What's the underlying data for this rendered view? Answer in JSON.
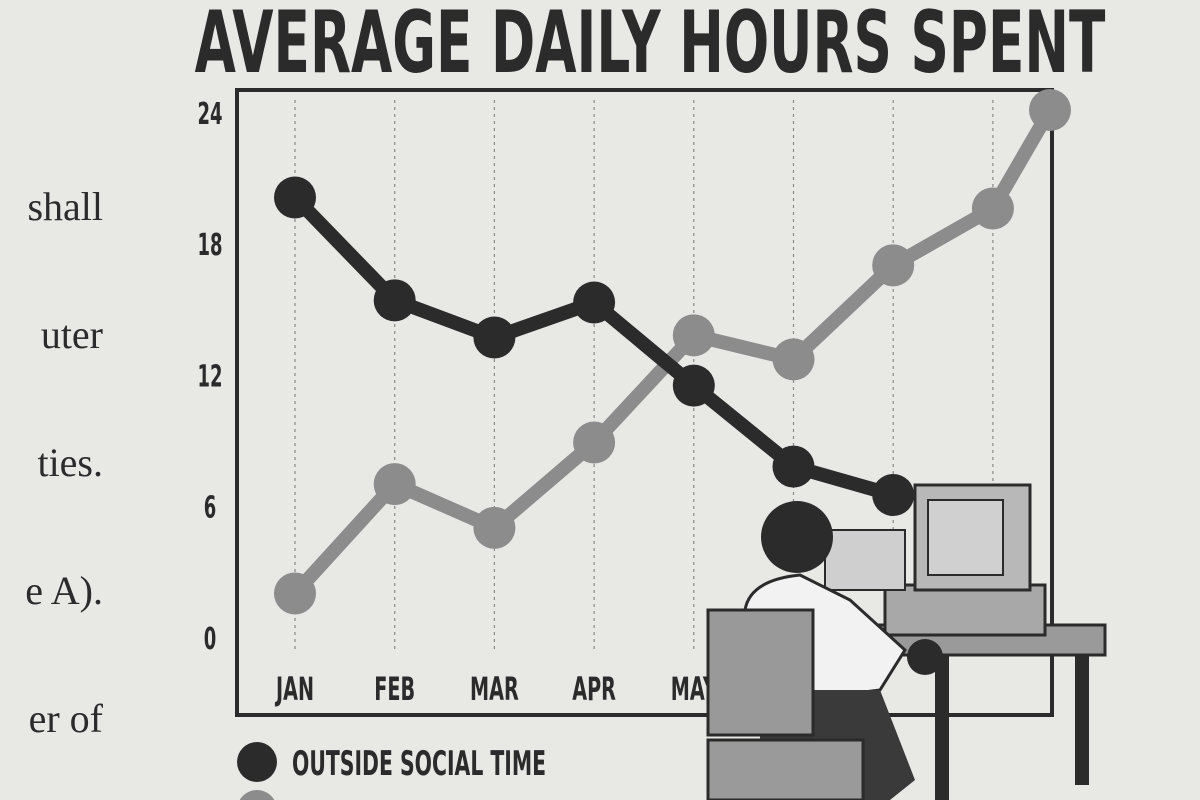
{
  "side_text": [
    "shall",
    "uter",
    "ties.",
    "e A).",
    "er of"
  ],
  "chart_data": {
    "type": "line",
    "title": "AVERAGE DAILY HOURS SPENT",
    "categories": [
      "JAN",
      "FEB",
      "MAR",
      "APR",
      "MAY",
      null,
      null,
      null,
      null
    ],
    "series": [
      {
        "name": "OUTSIDE SOCIAL TIME",
        "color": "#2b2b2b",
        "values": [
          20,
          15.3,
          13.6,
          15.2,
          11.4,
          7.7,
          6.4,
          null,
          null
        ]
      },
      {
        "color": "#8c8c8c",
        "values": [
          1.9,
          6.9,
          4.9,
          8.8,
          13.7,
          12.6,
          16.9,
          19.5,
          24
        ]
      }
    ],
    "ylim": [
      0,
      24
    ],
    "yticks": [
      0,
      6,
      12,
      18,
      24
    ],
    "grid": "x",
    "legend": "bottom-left"
  }
}
